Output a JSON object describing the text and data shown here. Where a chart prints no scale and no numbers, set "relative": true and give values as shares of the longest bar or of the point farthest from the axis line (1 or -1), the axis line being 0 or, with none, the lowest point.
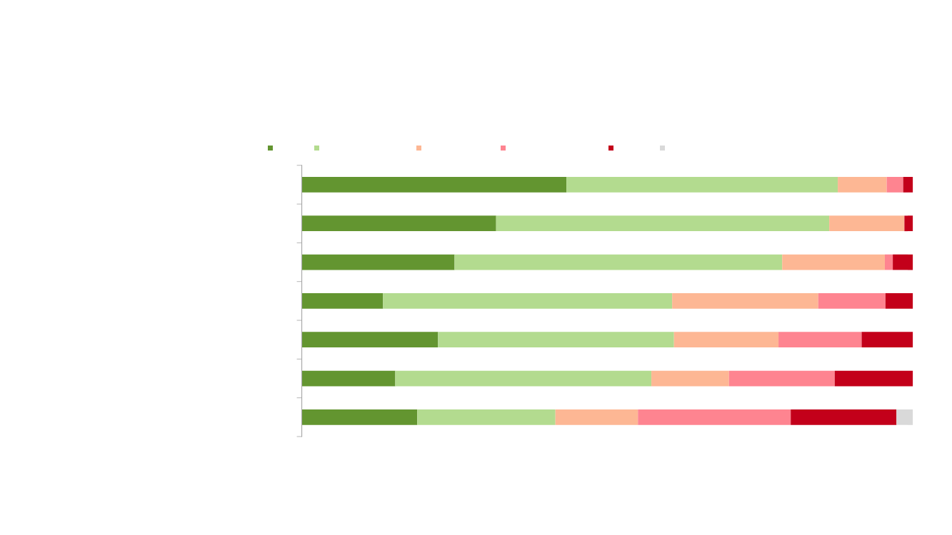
{
  "chart_data": {
    "type": "bar",
    "orientation": "horizontal",
    "stacked": true,
    "relative": true,
    "grid": false,
    "categories": [
      null,
      null,
      null,
      null,
      null,
      null,
      null
    ],
    "series": [
      {
        "color": "#639530",
        "values": [
          0.433,
          0.318,
          0.25,
          0.133,
          0.223,
          0.153,
          0.189
        ]
      },
      {
        "color": "#b3db8f",
        "values": [
          0.444,
          0.545,
          0.536,
          0.473,
          0.386,
          0.419,
          0.226
        ]
      },
      {
        "color": "#fdb794",
        "values": [
          0.08,
          0.123,
          0.168,
          0.239,
          0.171,
          0.127,
          0.135
        ]
      },
      {
        "color": "#fe8490",
        "values": [
          0.027,
          0.0,
          0.013,
          0.11,
          0.136,
          0.173,
          0.25
        ]
      },
      {
        "color": "#c3001a",
        "values": [
          0.016,
          0.014,
          0.033,
          0.045,
          0.084,
          0.128,
          0.173
        ]
      },
      {
        "color": "#d9d9d9",
        "values": [
          0.0,
          0.0,
          0.0,
          0.0,
          0.0,
          0.0,
          0.027
        ]
      }
    ]
  }
}
